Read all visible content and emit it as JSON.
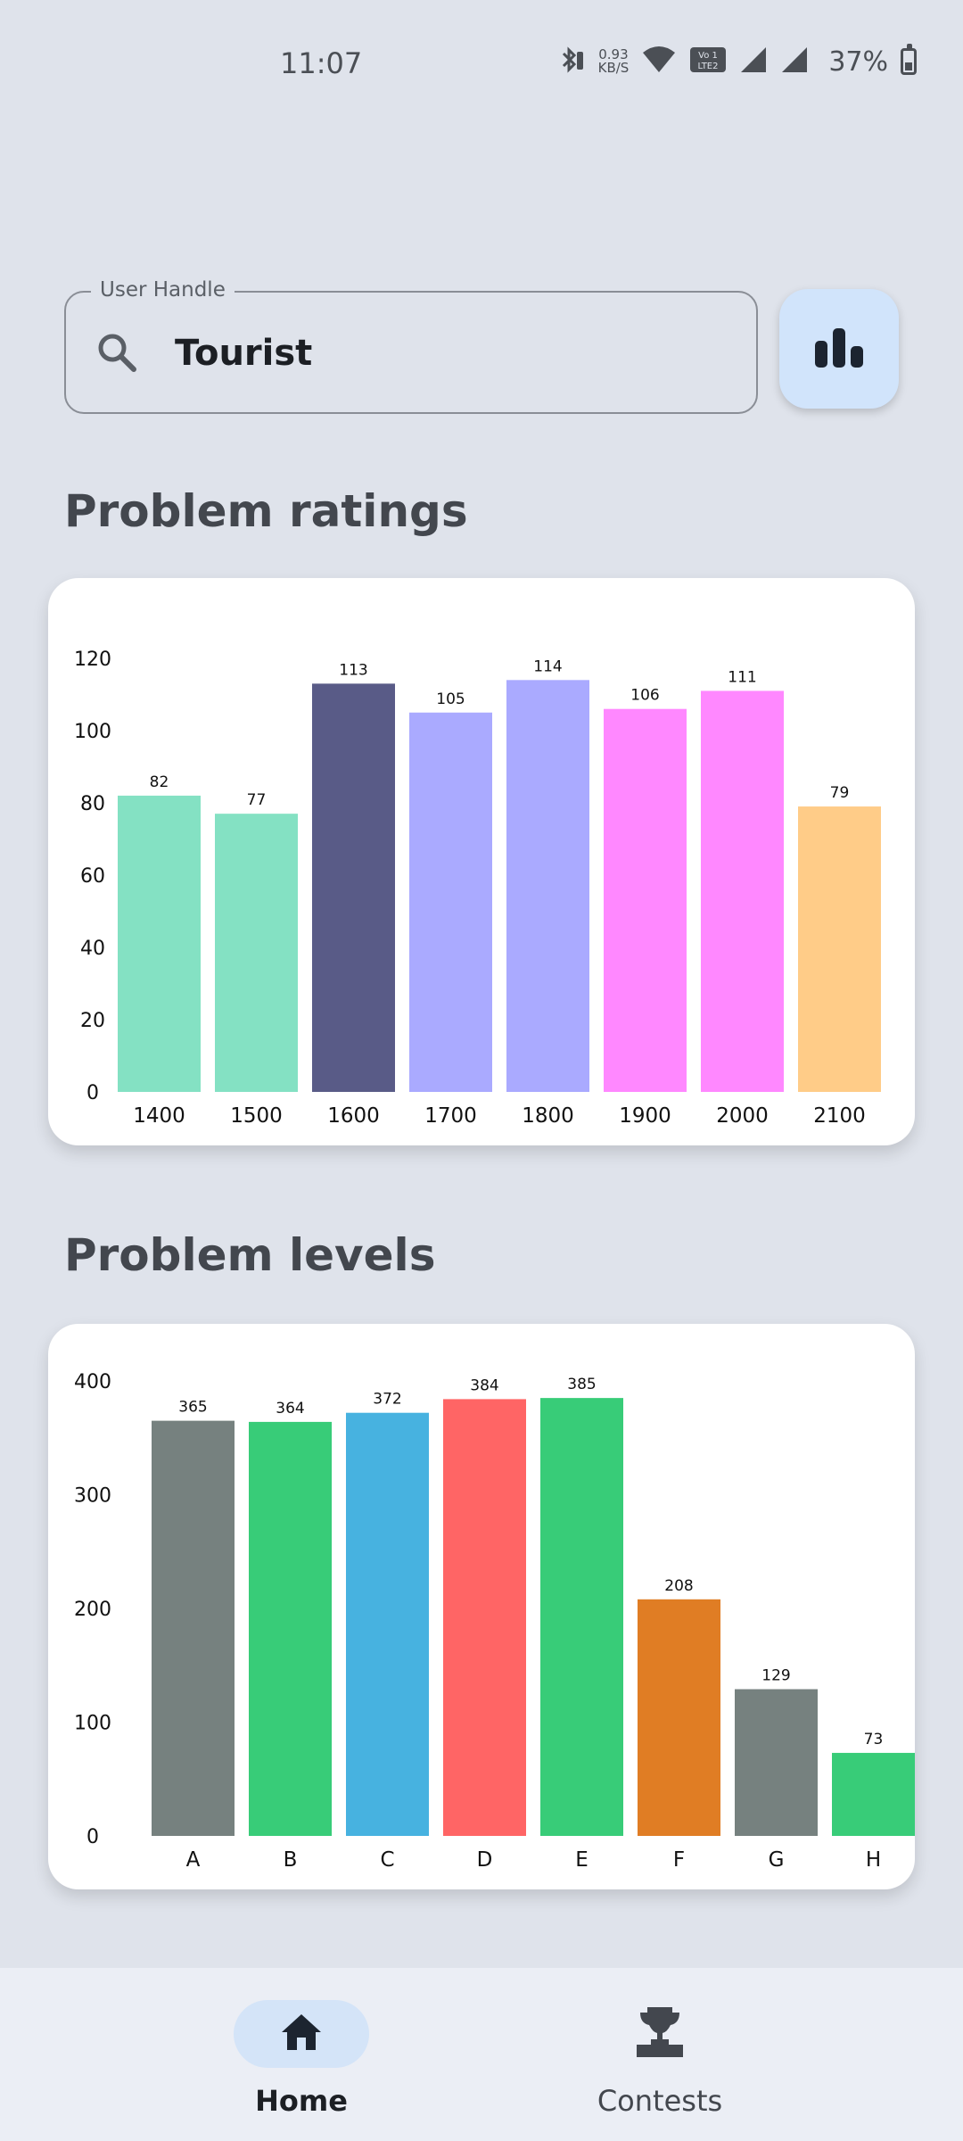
{
  "status": {
    "time": "11:07",
    "net_speed_value": "0.93",
    "net_speed_unit": "KB/S",
    "battery": "37%",
    "battery_level": 0.37
  },
  "search": {
    "label": "User Handle",
    "value": "Tourist",
    "icon": "search-icon"
  },
  "stats_button": {
    "icon": "bar-chart-icon"
  },
  "sections": {
    "ratings_title": "Problem ratings",
    "levels_title": "Problem levels"
  },
  "chart_data": [
    {
      "type": "bar",
      "categories": [
        "1400",
        "1500",
        "1600",
        "1700",
        "1800",
        "1900",
        "2000",
        "2100"
      ],
      "values": [
        82,
        77,
        113,
        105,
        114,
        106,
        111,
        79
      ],
      "colors": [
        "#84e1c3",
        "#84e1c3",
        "#595b87",
        "#aaaaff",
        "#aaaaff",
        "#ff88ff",
        "#ff88ff",
        "#ffcc88"
      ],
      "yticks": [
        0,
        20,
        40,
        60,
        80,
        100,
        120
      ],
      "ylim": [
        0,
        120
      ],
      "title": "",
      "xlabel": "",
      "ylabel": "",
      "grid": false,
      "legend": "none"
    },
    {
      "type": "bar",
      "categories": [
        "A",
        "B",
        "C",
        "D",
        "E",
        "F",
        "G",
        "H"
      ],
      "values": [
        365,
        364,
        372,
        384,
        385,
        208,
        129,
        73
      ],
      "colors": [
        "#76817f",
        "#38cc78",
        "#47b2e0",
        "#ff6565",
        "#38cc78",
        "#e07d24",
        "#76817f",
        "#38cc78"
      ],
      "yticks": [
        0,
        100,
        200,
        300,
        400
      ],
      "ylim": [
        0,
        400
      ],
      "title": "",
      "xlabel": "",
      "ylabel": "",
      "grid": false,
      "legend": "none"
    }
  ],
  "nav": {
    "items": [
      {
        "label": "Home",
        "icon": "home-icon",
        "active": true
      },
      {
        "label": "Contests",
        "icon": "trophy-icon",
        "active": false
      }
    ]
  }
}
